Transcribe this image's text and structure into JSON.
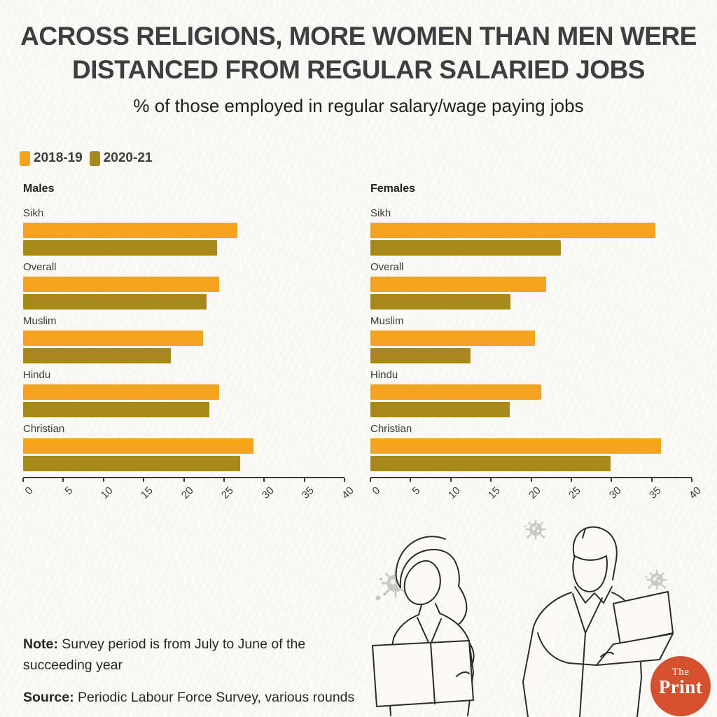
{
  "header": {
    "title_line1": "ACROSS RELIGIONS, MORE WOMEN THAN MEN WERE",
    "title_line2": "DISTANCED FROM REGULAR SALARIED JOBS",
    "subtitle": "% of those employed in regular salary/wage paying jobs"
  },
  "legend": [
    {
      "label": "2018-19",
      "color": "#F5A41F"
    },
    {
      "label": "2020-21",
      "color": "#A6881D"
    }
  ],
  "colors": {
    "background": "#FBFAF6",
    "title_text": "#3E3E40",
    "axis": "#3B3B3B",
    "virus_gray": "#C9C8C4",
    "logo_red": "#D4502E",
    "line_art": "#2B2B2B"
  },
  "chart_data": {
    "type": "bar",
    "orientation": "horizontal",
    "unit": "% employed in regular salary/wage paying jobs",
    "xlim": [
      0,
      40
    ],
    "ticks": [
      0,
      5,
      10,
      15,
      20,
      25,
      30,
      35,
      40
    ],
    "grid": false,
    "legend_position": "top-left",
    "series_names": [
      "2018-19",
      "2020-21"
    ],
    "panels": [
      {
        "title": "Males",
        "categories": [
          "Sikh",
          "Overall",
          "Muslim",
          "Hindu",
          "Christian"
        ],
        "series": [
          {
            "name": "2018-19",
            "values": [
              26.7,
              24.4,
              22.4,
              24.4,
              28.7
            ]
          },
          {
            "name": "2020-21",
            "values": [
              24.1,
              22.8,
              18.4,
              23.2,
              27.0
            ]
          }
        ]
      },
      {
        "title": "Females",
        "categories": [
          "Sikh",
          "Overall",
          "Muslim",
          "Hindu",
          "Christian"
        ],
        "series": [
          {
            "name": "2018-19",
            "values": [
              35.5,
              21.9,
              20.5,
              21.3,
              36.2
            ]
          },
          {
            "name": "2020-21",
            "values": [
              23.7,
              17.4,
              12.5,
              17.3,
              29.9
            ]
          }
        ]
      }
    ]
  },
  "footer": {
    "note_label": "Note:",
    "note_text": " Survey period is from July to June of the succeeding year",
    "source_label": "Source:",
    "source_text": " Periodic Labour Force Survey, various rounds"
  },
  "logo": {
    "top": "The",
    "bottom": "Print"
  }
}
